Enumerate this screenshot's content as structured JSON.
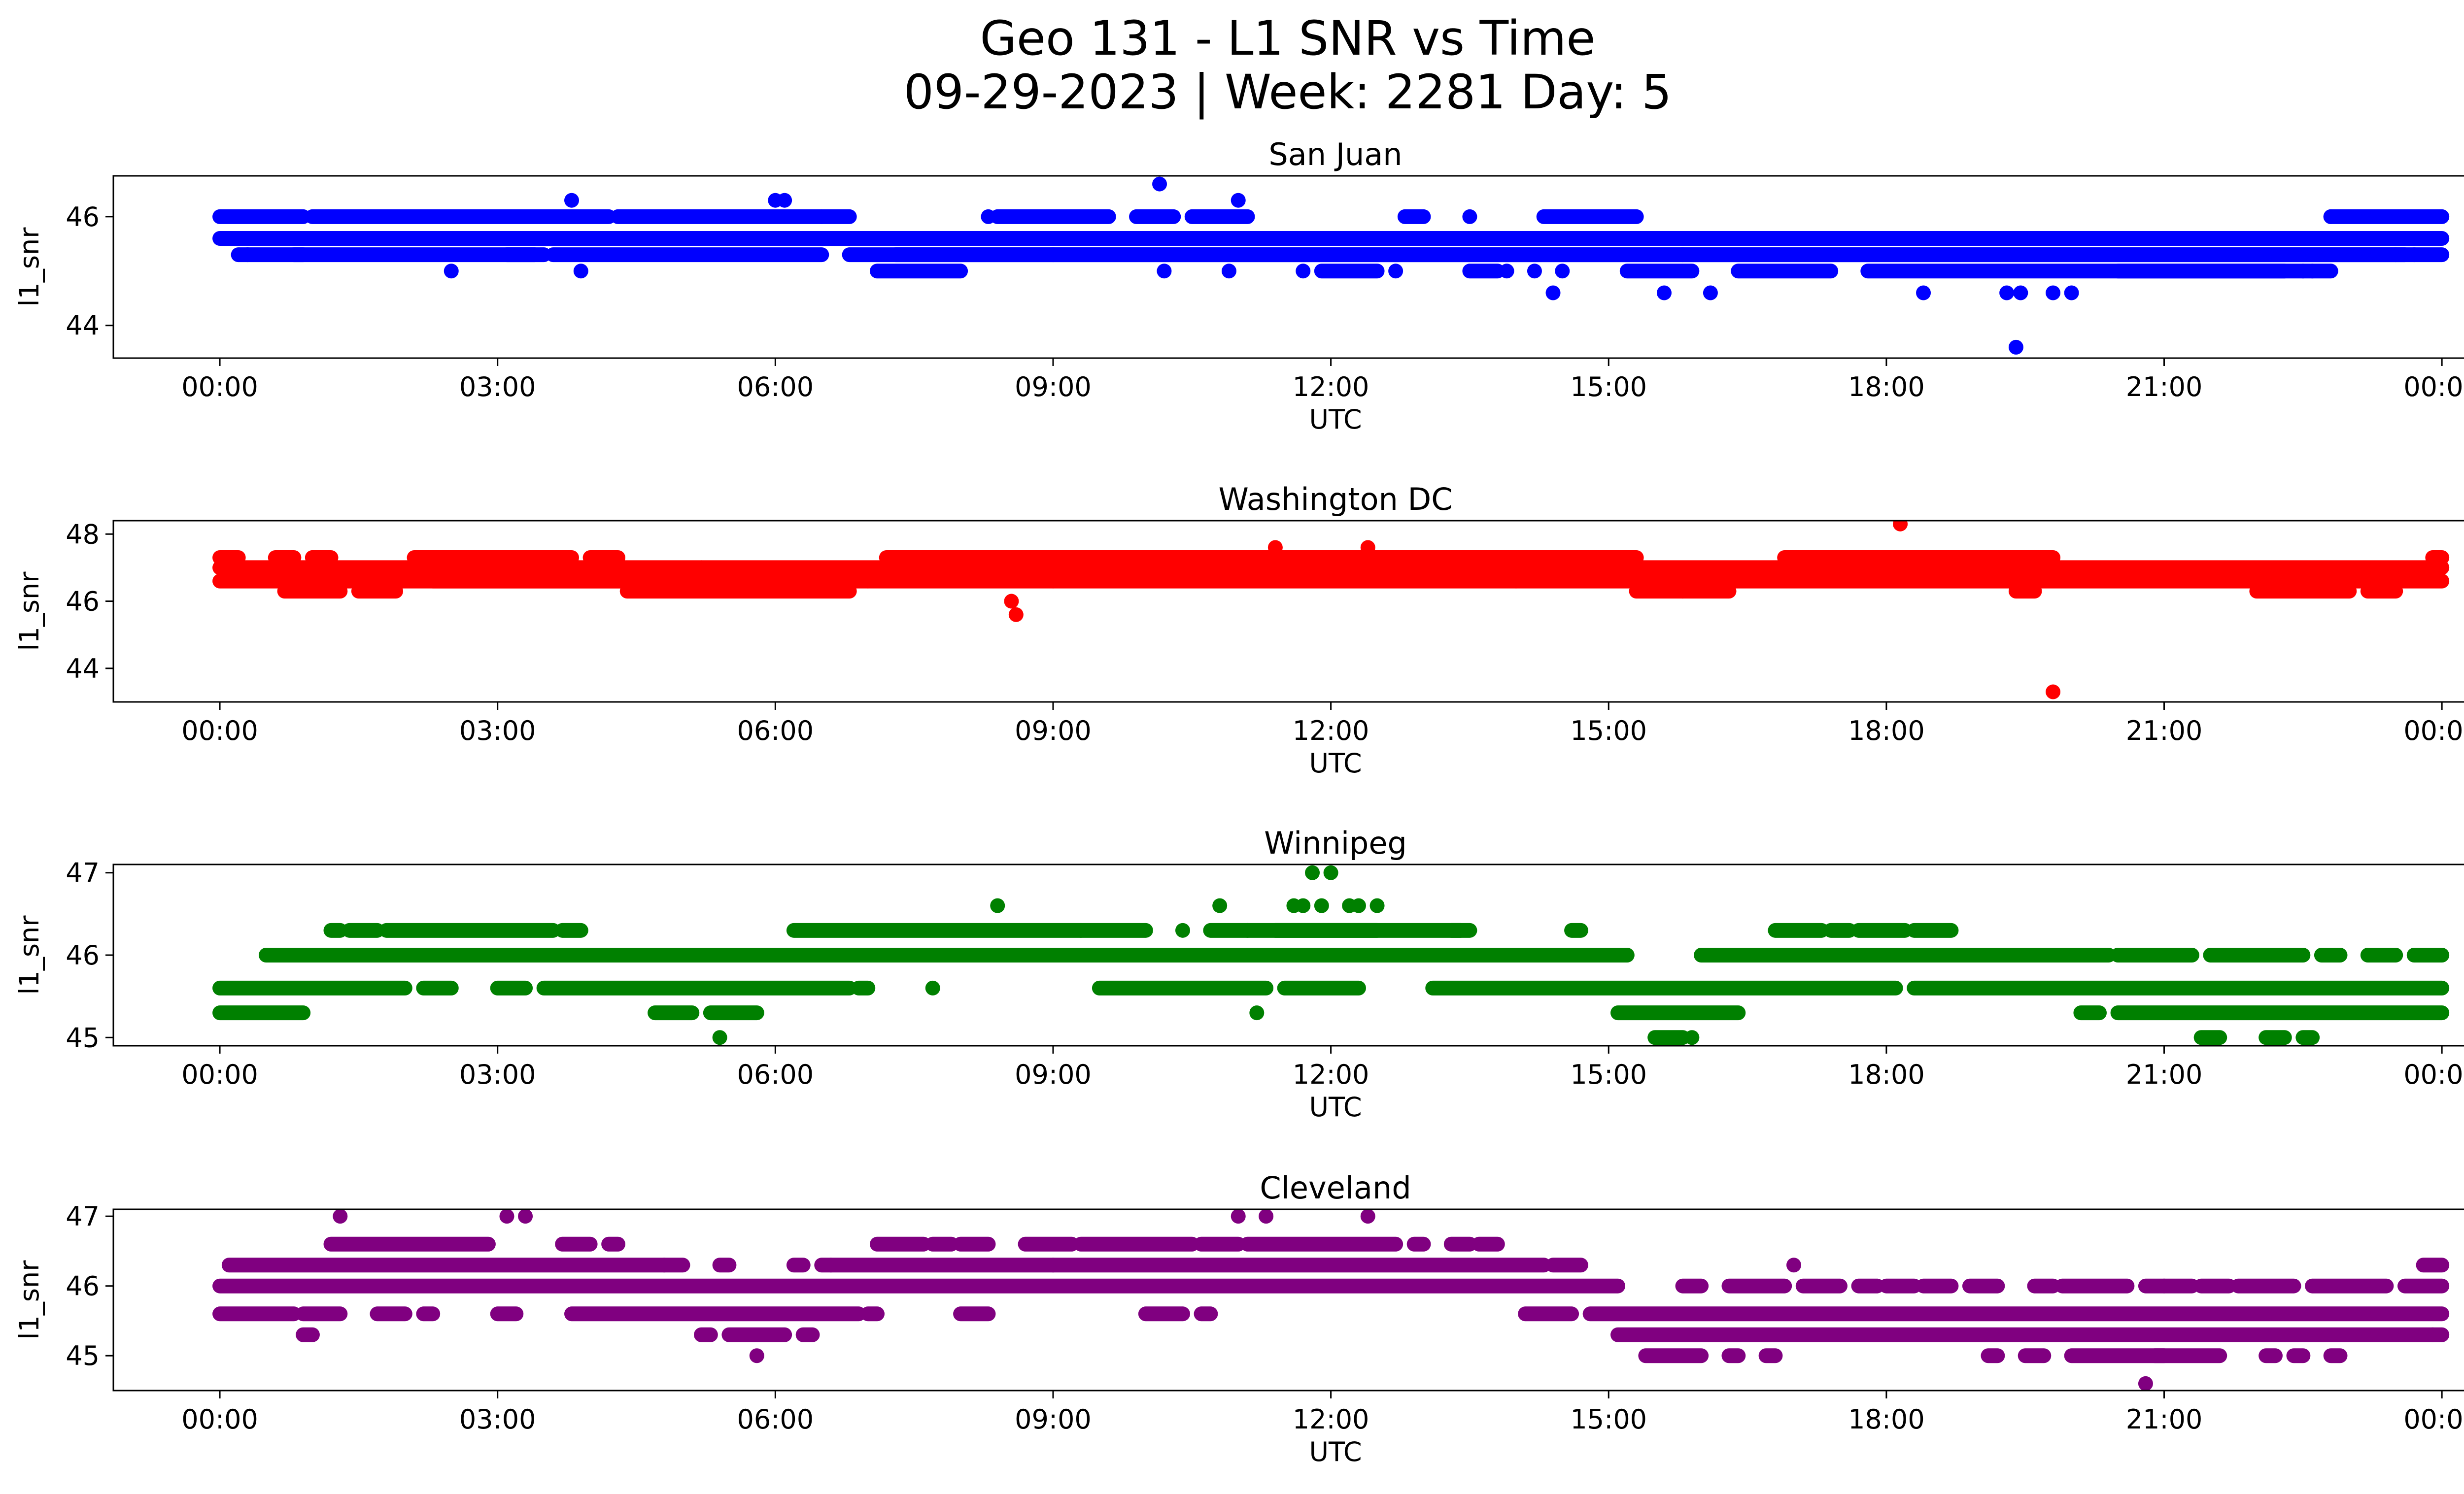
{
  "figure": {
    "title_line1": "Geo 131 - L1 SNR vs Time",
    "title_line2": "09-29-2023 | Week: 2281 Day: 5"
  },
  "chart_data": [
    {
      "type": "scatter",
      "title": "San Juan",
      "xlabel": "UTC",
      "ylabel": "l1_snr",
      "color": "#0000ff",
      "xlim": [
        -1.15,
        25.25
      ],
      "xticks": [
        "00:00",
        "03:00",
        "06:00",
        "09:00",
        "12:00",
        "15:00",
        "18:00",
        "21:00",
        "00:00"
      ],
      "ylim": [
        43.4,
        46.75
      ],
      "yticks": [
        44,
        46
      ],
      "bands": [
        {
          "y": 46.0,
          "segments": [
            [
              0.0,
              0.9
            ],
            [
              1.0,
              4.2
            ],
            [
              4.3,
              6.5
            ],
            [
              6.5,
              6.8
            ],
            [
              8.4,
              9.6
            ],
            [
              9.9,
              10.3
            ],
            [
              10.5,
              11.1
            ],
            [
              12.8,
              13.0
            ],
            [
              14.3,
              15.3
            ],
            [
              22.8,
              24.0
            ]
          ]
        },
        {
          "y": 45.6,
          "segments": [
            [
              0.0,
              24.0
            ]
          ]
        },
        {
          "y": 45.3,
          "segments": [
            [
              0.2,
              0.9
            ],
            [
              0.8,
              3.4
            ],
            [
              3.1,
              3.5
            ],
            [
              3.6,
              6.5
            ],
            [
              6.8,
              24.0
            ],
            [
              7.3,
              9.0
            ],
            [
              9.0,
              15.8
            ],
            [
              15.8,
              23.6
            ]
          ]
        },
        {
          "y": 45.0,
          "segments": [
            [
              7.1,
              8.0
            ],
            [
              11.9,
              12.5
            ],
            [
              13.5,
              13.8
            ],
            [
              15.2,
              15.9
            ],
            [
              16.4,
              17.4
            ],
            [
              17.8,
              22.3
            ],
            [
              20.5,
              22.8
            ]
          ]
        }
      ],
      "points": [
        {
          "x": 0.3,
          "y": 45.3
        },
        {
          "x": 2.5,
          "y": 45.0
        },
        {
          "x": 3.8,
          "y": 46.3
        },
        {
          "x": 3.9,
          "y": 45.0
        },
        {
          "x": 6.0,
          "y": 46.3
        },
        {
          "x": 6.1,
          "y": 46.3
        },
        {
          "x": 8.3,
          "y": 46.0
        },
        {
          "x": 10.15,
          "y": 46.6
        },
        {
          "x": 10.2,
          "y": 45.0
        },
        {
          "x": 10.9,
          "y": 45.0
        },
        {
          "x": 11.0,
          "y": 46.3
        },
        {
          "x": 11.7,
          "y": 45.0
        },
        {
          "x": 12.7,
          "y": 45.0
        },
        {
          "x": 13.5,
          "y": 46.0
        },
        {
          "x": 13.9,
          "y": 45.0
        },
        {
          "x": 14.2,
          "y": 45.0
        },
        {
          "x": 14.4,
          "y": 44.6
        },
        {
          "x": 14.5,
          "y": 45.0
        },
        {
          "x": 15.6,
          "y": 44.6
        },
        {
          "x": 16.1,
          "y": 44.6
        },
        {
          "x": 18.4,
          "y": 44.6
        },
        {
          "x": 18.5,
          "y": 45.6
        },
        {
          "x": 19.3,
          "y": 44.6
        },
        {
          "x": 19.4,
          "y": 43.6
        },
        {
          "x": 19.45,
          "y": 44.6
        },
        {
          "x": 19.8,
          "y": 44.6
        },
        {
          "x": 20.0,
          "y": 44.6
        },
        {
          "x": 22.5,
          "y": 45.0
        },
        {
          "x": 22.6,
          "y": 45.0
        },
        {
          "x": 22.8,
          "y": 46.0
        },
        {
          "x": 23.5,
          "y": 45.3
        },
        {
          "x": 23.7,
          "y": 45.3
        }
      ]
    },
    {
      "type": "scatter",
      "title": "Washington DC",
      "xlabel": "UTC",
      "ylabel": "l1_snr",
      "color": "#ff0000",
      "xlim": [
        -1.15,
        25.25
      ],
      "xticks": [
        "00:00",
        "03:00",
        "06:00",
        "09:00",
        "12:00",
        "15:00",
        "18:00",
        "21:00",
        "00:00"
      ],
      "ylim": [
        43.0,
        48.4
      ],
      "yticks": [
        44,
        46,
        48
      ],
      "bands": [
        {
          "y": 47.3,
          "segments": [
            [
              0.0,
              0.2
            ],
            [
              0.6,
              0.8
            ],
            [
              1.0,
              1.2
            ],
            [
              2.1,
              3.8
            ],
            [
              4.0,
              4.3
            ],
            [
              7.2,
              15.3
            ],
            [
              16.9,
              19.8
            ],
            [
              23.9,
              24.0
            ]
          ]
        },
        {
          "y": 47.0,
          "segments": [
            [
              0.0,
              24.0
            ]
          ]
        },
        {
          "y": 46.6,
          "segments": [
            [
              0.0,
              4.5
            ],
            [
              2.3,
              4.8
            ],
            [
              4.5,
              7.0
            ],
            [
              7.0,
              9.0
            ],
            [
              9.0,
              24.0
            ]
          ]
        },
        {
          "y": 46.3,
          "segments": [
            [
              0.7,
              1.3
            ],
            [
              1.5,
              1.9
            ],
            [
              4.4,
              6.8
            ],
            [
              15.3,
              16.3
            ],
            [
              19.4,
              19.6
            ],
            [
              22.0,
              23.0
            ],
            [
              23.2,
              23.5
            ]
          ]
        }
      ],
      "points": [
        {
          "x": 8.55,
          "y": 46.0
        },
        {
          "x": 8.6,
          "y": 45.6
        },
        {
          "x": 11.4,
          "y": 47.6
        },
        {
          "x": 12.4,
          "y": 47.6
        },
        {
          "x": 18.15,
          "y": 48.3
        },
        {
          "x": 19.8,
          "y": 43.3
        },
        {
          "x": 14.0,
          "y": 46.6
        },
        {
          "x": 15.8,
          "y": 46.3
        },
        {
          "x": 1.0,
          "y": 47.3
        },
        {
          "x": 5.2,
          "y": 47.0
        }
      ]
    },
    {
      "type": "scatter",
      "title": "Winnipeg",
      "xlabel": "UTC",
      "ylabel": "l1_snr",
      "color": "#008000",
      "xlim": [
        -1.15,
        25.25
      ],
      "xticks": [
        "00:00",
        "03:00",
        "06:00",
        "09:00",
        "12:00",
        "15:00",
        "18:00",
        "21:00",
        "00:00"
      ],
      "ylim": [
        44.9,
        47.1
      ],
      "yticks": [
        45,
        46,
        47
      ],
      "bands": [
        {
          "y": 46.3,
          "segments": [
            [
              1.2,
              1.3
            ],
            [
              1.4,
              1.7
            ],
            [
              1.8,
              3.6
            ],
            [
              3.7,
              3.9
            ],
            [
              6.2,
              10.0
            ],
            [
              10.7,
              11.1
            ],
            [
              11.1,
              12.5
            ],
            [
              11.4,
              13.5
            ],
            [
              13.3,
              13.4
            ],
            [
              14.6,
              14.7
            ],
            [
              16.8,
              17.3
            ],
            [
              17.4,
              17.6
            ],
            [
              17.7,
              18.2
            ],
            [
              18.3,
              18.7
            ]
          ]
        },
        {
          "y": 46.0,
          "segments": [
            [
              0.5,
              15.2
            ],
            [
              16.0,
              20.4
            ],
            [
              20.5,
              21.3
            ],
            [
              21.5,
              22.5
            ],
            [
              22.7,
              22.9
            ],
            [
              23.2,
              23.5
            ],
            [
              23.7,
              24.0
            ]
          ]
        },
        {
          "y": 45.6,
          "segments": [
            [
              0.0,
              2.0
            ],
            [
              2.2,
              2.5
            ],
            [
              3.0,
              3.3
            ],
            [
              3.5,
              6.8
            ],
            [
              6.9,
              7.0
            ],
            [
              9.5,
              11.3
            ],
            [
              11.5,
              12.3
            ],
            [
              13.1,
              18.1
            ],
            [
              18.3,
              24.0
            ]
          ]
        },
        {
          "y": 45.3,
          "segments": [
            [
              0.0,
              0.9
            ],
            [
              4.7,
              5.1
            ],
            [
              5.3,
              5.8
            ],
            [
              15.1,
              16.4
            ],
            [
              20.1,
              20.3
            ],
            [
              20.5,
              24.0
            ]
          ]
        },
        {
          "y": 45.0,
          "segments": [
            [
              15.5,
              15.8
            ],
            [
              21.4,
              21.6
            ],
            [
              22.1,
              22.3
            ],
            [
              22.5,
              22.6
            ]
          ]
        }
      ],
      "points": [
        {
          "x": 5.4,
          "y": 45.0
        },
        {
          "x": 7.7,
          "y": 45.6
        },
        {
          "x": 8.4,
          "y": 46.6
        },
        {
          "x": 9.3,
          "y": 46.3
        },
        {
          "x": 10.4,
          "y": 46.3
        },
        {
          "x": 10.8,
          "y": 46.6
        },
        {
          "x": 11.2,
          "y": 45.3
        },
        {
          "x": 11.6,
          "y": 46.6
        },
        {
          "x": 11.8,
          "y": 47.0
        },
        {
          "x": 11.9,
          "y": 46.6
        },
        {
          "x": 12.0,
          "y": 47.0
        },
        {
          "x": 12.2,
          "y": 46.6
        },
        {
          "x": 12.3,
          "y": 46.6
        },
        {
          "x": 12.5,
          "y": 46.6
        },
        {
          "x": 15.9,
          "y": 45.0
        },
        {
          "x": 11.7,
          "y": 46.6
        }
      ]
    },
    {
      "type": "scatter",
      "title": "Cleveland",
      "xlabel": "UTC",
      "ylabel": "l1_snr",
      "color": "#800080",
      "xlim": [
        -1.15,
        25.25
      ],
      "xticks": [
        "00:00",
        "03:00",
        "06:00",
        "09:00",
        "12:00",
        "15:00",
        "18:00",
        "21:00",
        "00:00"
      ],
      "ylim": [
        44.5,
        47.1
      ],
      "yticks": [
        45,
        46,
        47
      ],
      "bands": [
        {
          "y": 46.6,
          "segments": [
            [
              1.2,
              2.9
            ],
            [
              3.7,
              4.0
            ],
            [
              4.2,
              4.3
            ],
            [
              7.1,
              7.6
            ],
            [
              7.7,
              7.9
            ],
            [
              8.0,
              8.3
            ],
            [
              8.7,
              9.2
            ],
            [
              9.3,
              10.5
            ],
            [
              10.6,
              11.0
            ],
            [
              11.1,
              12.7
            ],
            [
              12.9,
              13.0
            ],
            [
              13.3,
              13.5
            ],
            [
              13.6,
              13.8
            ]
          ]
        },
        {
          "y": 46.3,
          "segments": [
            [
              0.1,
              5.0
            ],
            [
              5.4,
              5.5
            ],
            [
              6.2,
              6.3
            ],
            [
              6.5,
              6.6
            ],
            [
              6.6,
              14.3
            ],
            [
              14.4,
              14.7
            ],
            [
              23.8,
              24.0
            ]
          ]
        },
        {
          "y": 46.0,
          "segments": [
            [
              0.0,
              15.1
            ],
            [
              15.8,
              16.0
            ],
            [
              16.3,
              16.9
            ],
            [
              17.1,
              17.5
            ],
            [
              17.7,
              17.9
            ],
            [
              18.0,
              18.3
            ],
            [
              18.4,
              18.7
            ],
            [
              18.9,
              19.2
            ],
            [
              19.6,
              19.8
            ],
            [
              19.9,
              20.6
            ],
            [
              20.8,
              21.0
            ],
            [
              21.0,
              21.3
            ],
            [
              21.4,
              21.7
            ],
            [
              21.8,
              22.4
            ],
            [
              22.6,
              23.4
            ],
            [
              23.6,
              24.0
            ]
          ]
        },
        {
          "y": 45.6,
          "segments": [
            [
              0.0,
              0.8
            ],
            [
              0.9,
              1.3
            ],
            [
              1.7,
              2.0
            ],
            [
              2.2,
              2.3
            ],
            [
              3.0,
              3.2
            ],
            [
              3.8,
              6.9
            ],
            [
              7.0,
              7.1
            ],
            [
              8.0,
              8.3
            ],
            [
              10.0,
              10.4
            ],
            [
              10.6,
              10.7
            ],
            [
              14.1,
              14.6
            ],
            [
              14.8,
              24.0
            ]
          ]
        },
        {
          "y": 45.3,
          "segments": [
            [
              0.9,
              1.0
            ],
            [
              5.2,
              5.3
            ],
            [
              5.5,
              6.1
            ],
            [
              6.3,
              6.4
            ],
            [
              15.1,
              24.0
            ]
          ]
        },
        {
          "y": 45.0,
          "segments": [
            [
              15.4,
              16.0
            ],
            [
              16.3,
              16.4
            ],
            [
              16.7,
              16.8
            ],
            [
              19.1,
              19.2
            ],
            [
              19.5,
              19.7
            ],
            [
              20.0,
              21.0
            ],
            [
              20.9,
              21.6
            ],
            [
              22.1,
              22.2
            ],
            [
              22.4,
              22.5
            ],
            [
              22.8,
              22.9
            ]
          ]
        }
      ],
      "points": [
        {
          "x": 1.3,
          "y": 47.0
        },
        {
          "x": 3.1,
          "y": 47.0
        },
        {
          "x": 3.3,
          "y": 47.0
        },
        {
          "x": 11.0,
          "y": 47.0
        },
        {
          "x": 11.3,
          "y": 47.0
        },
        {
          "x": 12.4,
          "y": 47.0
        },
        {
          "x": 5.8,
          "y": 45.0
        },
        {
          "x": 9.0,
          "y": 46.3
        },
        {
          "x": 17.0,
          "y": 46.3
        },
        {
          "x": 20.8,
          "y": 44.6
        },
        {
          "x": 4.8,
          "y": 46.3
        },
        {
          "x": 23.9,
          "y": 45.3
        }
      ]
    }
  ]
}
